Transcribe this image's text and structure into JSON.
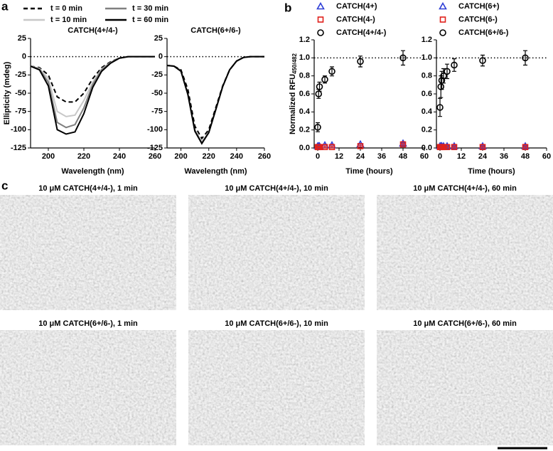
{
  "panel_labels": [
    "a",
    "b",
    "c"
  ],
  "micrographs": [
    "10 μM CATCH(4+/4-), 1 min",
    "10 μM CATCH(4+/4-), 10 min",
    "10 μM CATCH(4+/4-), 60 min",
    "10 μM CATCH(6+/6-), 1 min",
    "10 μM CATCH(6+/6-), 10 min",
    "10 μM CATCH(6+/6-), 60 min"
  ],
  "chart_data": [
    {
      "type": "line",
      "title": "CATCH(4+/4-)",
      "xlabel": "Wavelength (nm)",
      "ylabel": "Ellipticity (mdeg)",
      "x": [
        190,
        195,
        200,
        205,
        210,
        215,
        220,
        225,
        230,
        235,
        240,
        245,
        250,
        255,
        260
      ],
      "xlim": [
        190,
        260
      ],
      "xticks": [
        200,
        220,
        240,
        260
      ],
      "ylim": [
        -125,
        25
      ],
      "yticks": [
        -125,
        -100,
        -75,
        -50,
        -25,
        0,
        25
      ],
      "reference_line": 0,
      "series": [
        {
          "name": "t = 0 min",
          "color": "#000000",
          "dashed": true,
          "values": [
            -13,
            -15,
            -25,
            -55,
            -62,
            -62,
            -50,
            -30,
            -15,
            -7,
            -2,
            0,
            0,
            0,
            0
          ]
        },
        {
          "name": "t = 10 min",
          "color": "#c8c8c8",
          "values": [
            -13,
            -16,
            -30,
            -75,
            -82,
            -80,
            -60,
            -35,
            -17,
            -8,
            -2,
            0,
            0,
            0,
            0
          ]
        },
        {
          "name": "t = 30 min",
          "color": "#808080",
          "values": [
            -13,
            -17,
            -35,
            -90,
            -97,
            -93,
            -70,
            -38,
            -18,
            -8,
            -2,
            0,
            0,
            0,
            0
          ]
        },
        {
          "name": "t = 60 min",
          "color": "#000000",
          "values": [
            -13,
            -18,
            -40,
            -100,
            -106,
            -103,
            -78,
            -42,
            -20,
            -9,
            -2,
            0,
            0,
            0,
            0
          ]
        }
      ]
    },
    {
      "type": "line",
      "title": "CATCH(6+/6-)",
      "xlabel": "Wavelength (nm)",
      "x": [
        190,
        195,
        200,
        205,
        210,
        215,
        220,
        225,
        230,
        235,
        240,
        245,
        250,
        255,
        260
      ],
      "xlim": [
        190,
        260
      ],
      "xticks": [
        200,
        220,
        240,
        260
      ],
      "ylim": [
        -125,
        25
      ],
      "yticks": [
        -125,
        -100,
        -75,
        -50,
        -25,
        0,
        25
      ],
      "reference_line": 0,
      "series": [
        {
          "color": "#c8c8c8",
          "values": [
            -12,
            -13,
            -19,
            -50,
            -100,
            -117,
            -103,
            -72,
            -41,
            -18,
            -6,
            -1,
            0,
            0,
            0
          ]
        },
        {
          "color": "#808080",
          "values": [
            -12,
            -13,
            -19,
            -51,
            -101,
            -118,
            -104,
            -72,
            -41,
            -18,
            -6,
            -1,
            0,
            0,
            0
          ]
        },
        {
          "color": "#000000",
          "values": [
            -12,
            -13,
            -20,
            -52,
            -102,
            -119,
            -104,
            -73,
            -41,
            -18,
            -6,
            -1,
            0,
            0,
            0
          ]
        },
        {
          "color": "#000000",
          "dashed": true,
          "values": [
            -12,
            -13,
            -18,
            -45,
            -95,
            -112,
            -100,
            -70,
            -40,
            -18,
            -6,
            -1,
            0,
            0,
            0
          ]
        }
      ]
    },
    {
      "type": "scatter",
      "xlabel": "Time (hours)",
      "ylabel": "Normalized RFU",
      "ylabel_subscript": "450/482",
      "x": [
        0,
        0.5,
        1,
        4,
        8,
        24,
        48
      ],
      "xlim": [
        -2,
        60
      ],
      "xticks": [
        0,
        12,
        24,
        36,
        48,
        60
      ],
      "ylim": [
        0,
        1.2
      ],
      "yticks": [
        {
          "value": 0,
          "label": "0.0"
        },
        0.2,
        0.4,
        0.6,
        0.8,
        {
          "value": 1,
          "label": "1.0"
        },
        1.2
      ],
      "reference_line": 1,
      "series": [
        {
          "name": "CATCH(4+)",
          "color": "#2e3ed6",
          "marker": "triangle",
          "values": [
            0.02,
            0.02,
            0.02,
            0.03,
            0.03,
            0.04,
            0.05
          ],
          "errors": [
            0.01,
            0.01,
            0.01,
            0.01,
            0.01,
            0.01,
            0.01
          ]
        },
        {
          "name": "CATCH(4-)",
          "color": "#e0201b",
          "marker": "square",
          "values": [
            0.01,
            0.01,
            0.01,
            0.01,
            0.01,
            0.02,
            0.04
          ],
          "errors": [
            0.01,
            0.01,
            0.01,
            0.01,
            0.01,
            0.01,
            0.01
          ]
        },
        {
          "name": "CATCH(4+/4-)",
          "color": "#000000",
          "marker": "circle",
          "values": [
            0.23,
            0.6,
            0.68,
            0.76,
            0.85,
            0.96,
            1.0
          ],
          "errors": [
            0.05,
            0.05,
            0.05,
            0.04,
            0.05,
            0.06,
            0.08
          ]
        }
      ]
    },
    {
      "type": "scatter",
      "xlabel": "Time (hours)",
      "x": [
        0,
        0.5,
        1,
        2,
        4,
        8,
        24,
        48
      ],
      "xlim": [
        -2,
        60
      ],
      "xticks": [
        0,
        12,
        24,
        36,
        48,
        60
      ],
      "ylim": [
        0,
        1.2
      ],
      "yticks": [
        {
          "value": 0,
          "label": "0.0"
        },
        0.2,
        0.4,
        0.6,
        0.8,
        {
          "value": 1,
          "label": "1.0"
        },
        1.2
      ],
      "reference_line": 1,
      "series": [
        {
          "name": "CATCH(6+)",
          "color": "#2e3ed6",
          "marker": "triangle",
          "values": [
            0.02,
            0.02,
            0.02,
            0.02,
            0.02,
            0.02,
            0.02,
            0.02
          ],
          "errors": [
            0.01,
            0.01,
            0.01,
            0.01,
            0.01,
            0.01,
            0.01,
            0.01
          ]
        },
        {
          "name": "CATCH(6-)",
          "color": "#e0201b",
          "marker": "square",
          "values": [
            0.01,
            0.01,
            0.01,
            0.01,
            0.01,
            0.01,
            0.01,
            0.01
          ],
          "errors": [
            0.01,
            0.01,
            0.01,
            0.01,
            0.01,
            0.01,
            0.01,
            0.01
          ]
        },
        {
          "name": "CATCH(6+/6-)",
          "color": "#000000",
          "marker": "circle",
          "values": [
            0.45,
            0.68,
            0.75,
            0.8,
            0.85,
            0.92,
            0.97,
            1.0
          ],
          "errors": [
            0.1,
            0.12,
            0.1,
            0.08,
            0.08,
            0.07,
            0.06,
            0.08
          ]
        }
      ]
    }
  ]
}
